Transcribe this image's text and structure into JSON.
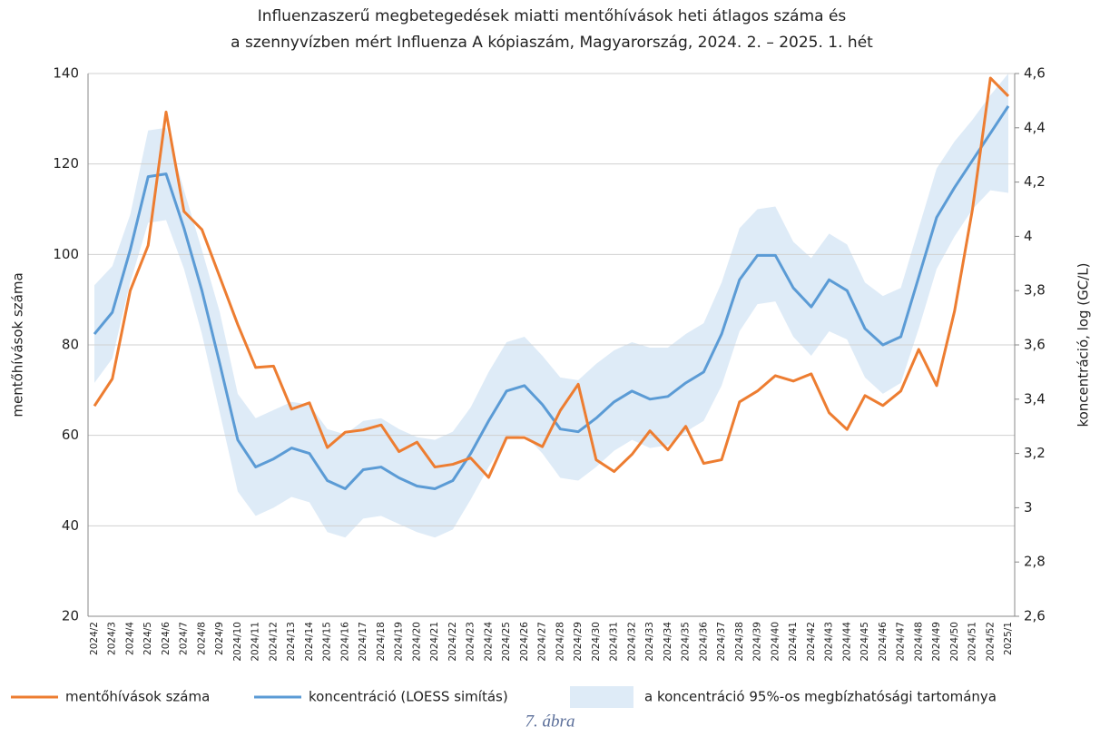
{
  "chart_data": {
    "type": "line",
    "title": [
      "Influenzaszerű megbetegedések miatti mentőhívások heti átlagos száma és",
      "a szennyvízben mért Influenza A kópiaszám, Magyarország, 2024. 2. – 2025. 1. hét"
    ],
    "ylabel": "mentőhívások száma",
    "y2label": "koncentráció, log (GC/L)",
    "caption": "7. ábra",
    "categories": [
      "2024/2",
      "2024/3",
      "2024/4",
      "2024/5",
      "2024/6",
      "2024/7",
      "2024/8",
      "2024/9",
      "2024/10",
      "2024/11",
      "2024/12",
      "2024/13",
      "2024/14",
      "2024/15",
      "2024/16",
      "2024/17",
      "2024/18",
      "2024/19",
      "2024/20",
      "2024/21",
      "2024/22",
      "2024/23",
      "2024/24",
      "2024/25",
      "2024/26",
      "2024/27",
      "2024/28",
      "2024/29",
      "2024/30",
      "2024/31",
      "2024/32",
      "2024/33",
      "2024/34",
      "2024/35",
      "2024/36",
      "2024/37",
      "2024/38",
      "2024/39",
      "2024/40",
      "2024/41",
      "2024/42",
      "2024/43",
      "2024/44",
      "2024/45",
      "2024/46",
      "2024/47",
      "2024/48",
      "2024/49",
      "2024/50",
      "2024/51",
      "2024/52",
      "2025/1"
    ],
    "ylim": [
      20,
      140
    ],
    "yticks": [
      20,
      40,
      60,
      80,
      100,
      120,
      140
    ],
    "y2lim": [
      2.6,
      4.6
    ],
    "y2ticks": [
      {
        "value": 2.6,
        "label": "2,6"
      },
      {
        "value": 2.8,
        "label": "2,8"
      },
      3,
      {
        "value": 3.2,
        "label": "3,2"
      },
      {
        "value": 3.4,
        "label": "3,4"
      },
      {
        "value": 3.6,
        "label": "3,6"
      },
      {
        "value": 3.8,
        "label": "3,8"
      },
      4,
      {
        "value": 4.2,
        "label": "4,2"
      },
      {
        "value": 4.4,
        "label": "4,4"
      },
      {
        "value": 4.6,
        "label": "4,6"
      }
    ],
    "grid": true,
    "series": [
      {
        "name": "mentőhívások száma",
        "color": "#ed7d31",
        "values": [
          66.5,
          72.5,
          92,
          102,
          131.5,
          109.5,
          105.5,
          95,
          84.5,
          75,
          75.3,
          65.8,
          67.2,
          57.3,
          60.7,
          61.2,
          62.3,
          56.4,
          58.5,
          53,
          53.6,
          55,
          50.7,
          59.5,
          59.5,
          57.5,
          65.5,
          71.3,
          54.6,
          52,
          55.8,
          61,
          56.8,
          62,
          53.8,
          54.6,
          67.4,
          69.8,
          73.2,
          72,
          73.6,
          65,
          61.3,
          68.8,
          66.6,
          69.8,
          79,
          71,
          87.5,
          110,
          139,
          135
        ]
      },
      {
        "name": "koncentráció (LOESS simítás)",
        "color": "#5b9bd5",
        "axis": "y2",
        "values": [
          3.64,
          3.72,
          3.95,
          4.22,
          4.23,
          4.03,
          3.8,
          3.53,
          3.25,
          3.15,
          3.18,
          3.22,
          3.2,
          3.1,
          3.07,
          3.14,
          3.15,
          3.11,
          3.08,
          3.07,
          3.1,
          3.2,
          3.32,
          3.43,
          3.45,
          3.38,
          3.29,
          3.28,
          3.33,
          3.39,
          3.43,
          3.4,
          3.41,
          3.46,
          3.5,
          3.64,
          3.84,
          3.93,
          3.93,
          3.81,
          3.74,
          3.84,
          3.8,
          3.66,
          3.6,
          3.63,
          3.85,
          4.07,
          4.18,
          4.28,
          4.38,
          4.48
        ]
      },
      {
        "name": "a koncentráció 95%-os megbízhatósági tartománya",
        "color": "#deebf7",
        "axis": "y2",
        "upper": [
          3.82,
          3.89,
          4.08,
          4.39,
          4.4,
          4.17,
          3.95,
          3.72,
          3.42,
          3.33,
          3.36,
          3.39,
          3.38,
          3.29,
          3.27,
          3.32,
          3.33,
          3.29,
          3.26,
          3.25,
          3.28,
          3.37,
          3.5,
          3.61,
          3.63,
          3.56,
          3.48,
          3.47,
          3.53,
          3.58,
          3.61,
          3.59,
          3.59,
          3.64,
          3.68,
          3.83,
          4.03,
          4.1,
          4.11,
          3.98,
          3.92,
          4.01,
          3.97,
          3.83,
          3.78,
          3.81,
          4.03,
          4.25,
          4.35,
          4.43,
          4.52,
          4.6
        ],
        "lower": [
          3.46,
          3.55,
          3.83,
          4.05,
          4.06,
          3.88,
          3.64,
          3.35,
          3.06,
          2.97,
          3,
          3.04,
          3.02,
          2.91,
          2.89,
          2.96,
          2.97,
          2.94,
          2.91,
          2.89,
          2.92,
          3.03,
          3.15,
          3.25,
          3.27,
          3.2,
          3.11,
          3.1,
          3.15,
          3.21,
          3.25,
          3.22,
          3.23,
          3.28,
          3.32,
          3.45,
          3.65,
          3.75,
          3.76,
          3.63,
          3.56,
          3.65,
          3.62,
          3.48,
          3.42,
          3.46,
          3.66,
          3.88,
          4,
          4.1,
          4.17,
          4.16
        ]
      }
    ]
  }
}
